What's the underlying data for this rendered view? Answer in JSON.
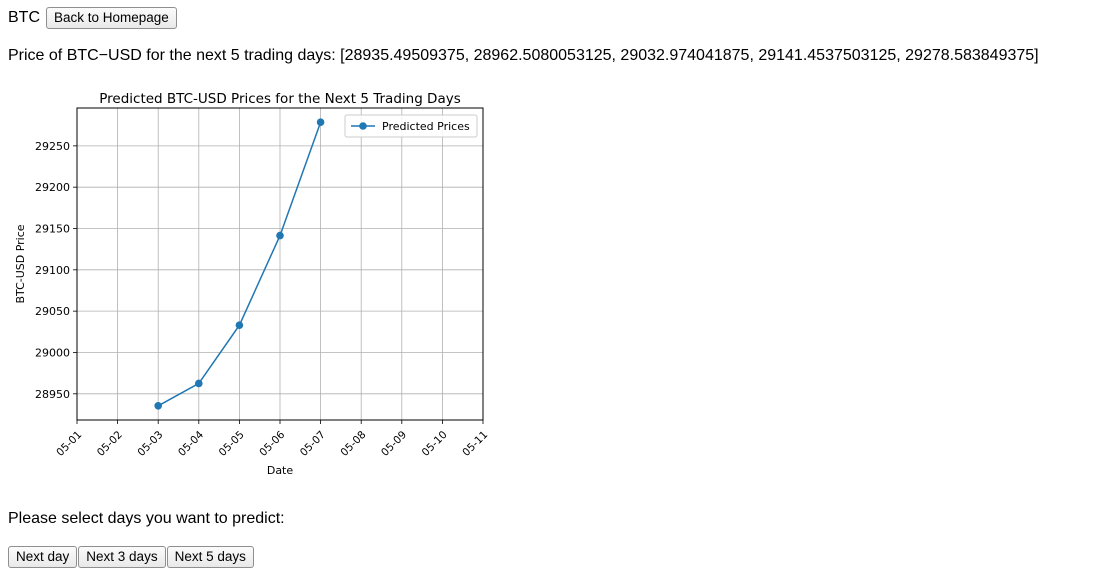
{
  "header": {
    "ticker_label": "BTC",
    "back_button_label": "Back to Homepage"
  },
  "prediction": {
    "text": "Price of BTC−USD for the next 5 trading days: [28935.49509375, 28962.5080053125, 29032.974041875, 29141.4537503125, 29278.583849375]"
  },
  "chart_data": {
    "type": "line",
    "title": "Predicted BTC-USD Prices for the Next 5 Trading Days",
    "xlabel": "Date",
    "ylabel": "BTC-USD Price",
    "x_tick_labels": [
      "05-01",
      "05-02",
      "05-03",
      "05-04",
      "05-05",
      "05-06",
      "05-07",
      "05-08",
      "05-09",
      "05-10",
      "05-11"
    ],
    "y_ticks": [
      28950,
      29000,
      29050,
      29100,
      29150,
      29200,
      29250
    ],
    "ylim": [
      28918.3,
      29295.8
    ],
    "grid": true,
    "legend_position": "top-right",
    "series": [
      {
        "name": "Predicted Prices",
        "color": "#1f77b4",
        "x": [
          "05-03",
          "05-04",
          "05-05",
          "05-06",
          "05-07"
        ],
        "values": [
          28935.49509375,
          28962.5080053125,
          29032.974041875,
          29141.4537503125,
          29278.583849375
        ]
      }
    ]
  },
  "selector": {
    "label": "Please select days you want to predict:",
    "buttons": [
      {
        "label": "Next day"
      },
      {
        "label": "Next 3 days"
      },
      {
        "label": "Next 5 days"
      }
    ]
  }
}
